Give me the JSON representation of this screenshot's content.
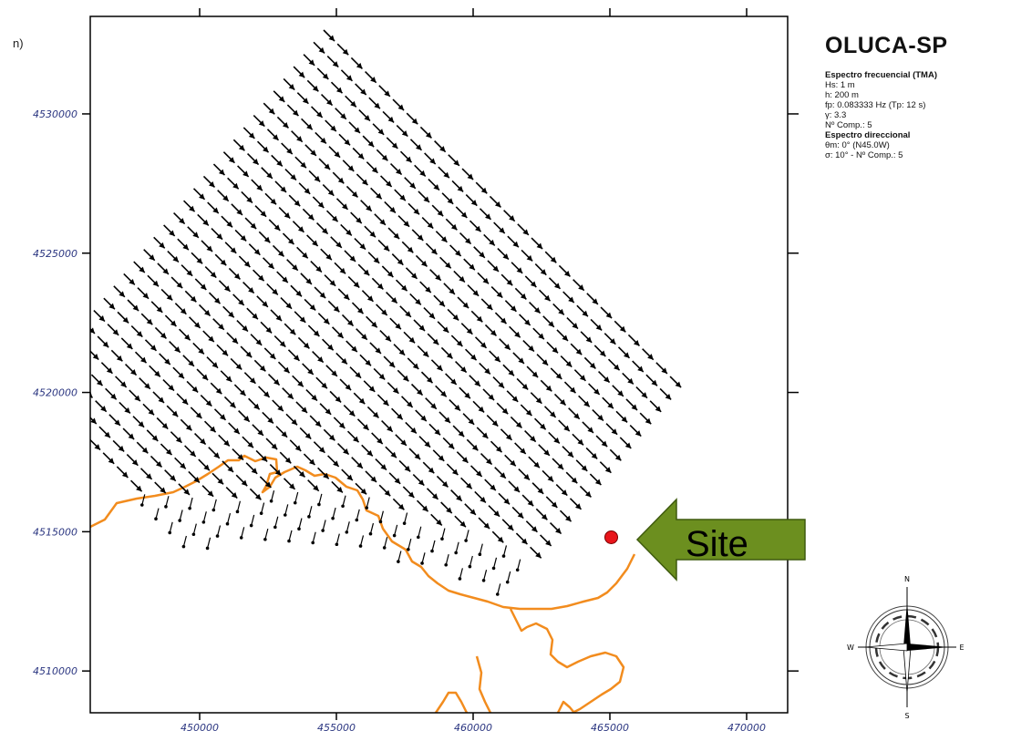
{
  "figure": {
    "title": "OLUCA-SP",
    "left_edge_fragment": "n)",
    "legend_lines": [
      {
        "text": "Espectro frecuencial (TMA)",
        "bold": true
      },
      {
        "text": "Hs: 1 m",
        "bold": false
      },
      {
        "text": "h: 200 m",
        "bold": false
      },
      {
        "text": "fp: 0.083333 Hz (Tp: 12 s)",
        "bold": false
      },
      {
        "text": "γ: 3.3",
        "bold": false
      },
      {
        "text": "Nº Comp.: 5",
        "bold": false
      },
      {
        "text": "Espectro direccional",
        "bold": true
      },
      {
        "text": "θm: 0° (N45.0W)",
        "bold": false
      },
      {
        "text": "σ: 10° - Nº Comp.: 5",
        "bold": false
      }
    ],
    "site_callout": "Site",
    "compass": {
      "n": "N",
      "s": "S",
      "e": "E",
      "w": "W"
    }
  },
  "axes": {
    "x_ticks": [
      450000,
      455000,
      460000,
      465000,
      470000
    ],
    "y_ticks": [
      4510000,
      4515000,
      4520000,
      4525000,
      4530000
    ],
    "x_range": [
      446000,
      471500
    ],
    "y_range": [
      4508500,
      4533500
    ],
    "tick_label_color": "#2a3580"
  },
  "map_data": {
    "site_location": {
      "x": 465050,
      "y": 4514800
    },
    "wave_direction_deg_from_north": 135,
    "coastline_color": "#f28c1e",
    "site_marker_color": "#e8151b",
    "callout_color": "#6c8f1f"
  }
}
